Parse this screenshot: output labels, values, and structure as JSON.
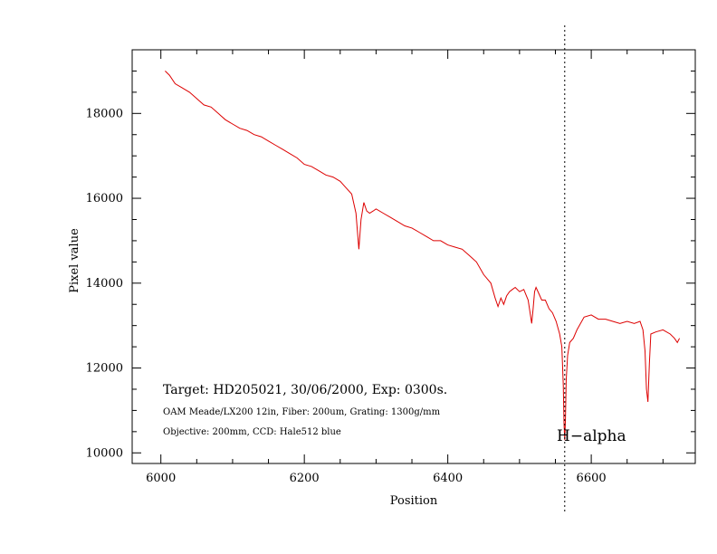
{
  "chart_data": {
    "type": "line",
    "title": "",
    "xlabel": "Position",
    "ylabel": "Pixel value",
    "xlim": [
      5960,
      6745
    ],
    "ylim": [
      9750,
      19500
    ],
    "x_ticks": [
      6000,
      6200,
      6400,
      6600
    ],
    "y_ticks": [
      10000,
      12000,
      14000,
      16000,
      18000
    ],
    "x_minor_step": 50,
    "y_minor_step": 500,
    "grid": false,
    "line_color": "#dd0000",
    "reference_line": {
      "x": 6563,
      "style": "dotted",
      "label": "H−alpha"
    },
    "annotations": [
      "Target: HD205021, 30/06/2000, Exp: 0300s.",
      "OAM Meade/LX200 12in, Fiber: 200um, Grating: 1300g/mm",
      "Objective: 200mm, CCD: Hale512 blue"
    ],
    "series": [
      {
        "x": [
          6006,
          6012,
          6020,
          6030,
          6040,
          6050,
          6060,
          6070,
          6080,
          6090,
          6100,
          6110,
          6120,
          6130,
          6140,
          6150,
          6160,
          6170,
          6180,
          6190,
          6200,
          6210,
          6220,
          6230,
          6240,
          6250,
          6258,
          6266,
          6272,
          6276,
          6279,
          6283,
          6287,
          6291,
          6296,
          6300,
          6310,
          6320,
          6330,
          6340,
          6350,
          6360,
          6370,
          6380,
          6390,
          6400,
          6410,
          6420,
          6430,
          6440,
          6450,
          6460,
          6466,
          6470,
          6474,
          6478,
          6482,
          6486,
          6490,
          6494,
          6500,
          6506,
          6512,
          6517,
          6519,
          6521,
          6523,
          6527,
          6531,
          6536,
          6541,
          6546,
          6551,
          6556,
          6559,
          6561,
          6562,
          6563,
          6564,
          6565,
          6567,
          6570,
          6575,
          6580,
          6590,
          6600,
          6610,
          6620,
          6630,
          6640,
          6650,
          6660,
          6668,
          6672,
          6675,
          6677,
          6679,
          6681,
          6683,
          6690,
          6700,
          6710,
          6716,
          6720,
          6723
        ],
        "y": [
          19000,
          18900,
          18700,
          18600,
          18500,
          18350,
          18200,
          18150,
          18000,
          17850,
          17750,
          17650,
          17600,
          17500,
          17450,
          17350,
          17250,
          17150,
          17050,
          16950,
          16800,
          16750,
          16650,
          16550,
          16500,
          16400,
          16250,
          16100,
          15650,
          14800,
          15500,
          15900,
          15700,
          15650,
          15700,
          15750,
          15650,
          15550,
          15450,
          15350,
          15300,
          15200,
          15100,
          15000,
          15000,
          14900,
          14850,
          14800,
          14650,
          14500,
          14200,
          14000,
          13650,
          13450,
          13650,
          13500,
          13700,
          13800,
          13850,
          13900,
          13800,
          13850,
          13600,
          13050,
          13400,
          13800,
          13900,
          13750,
          13600,
          13600,
          13400,
          13300,
          13100,
          12800,
          12500,
          11600,
          10700,
          10300,
          10800,
          11700,
          12300,
          12600,
          12700,
          12900,
          13200,
          13250,
          13150,
          13150,
          13100,
          13050,
          13100,
          13050,
          13100,
          12900,
          12400,
          11500,
          11200,
          12100,
          12800,
          12850,
          12900,
          12800,
          12700,
          12600,
          12700
        ]
      }
    ]
  }
}
